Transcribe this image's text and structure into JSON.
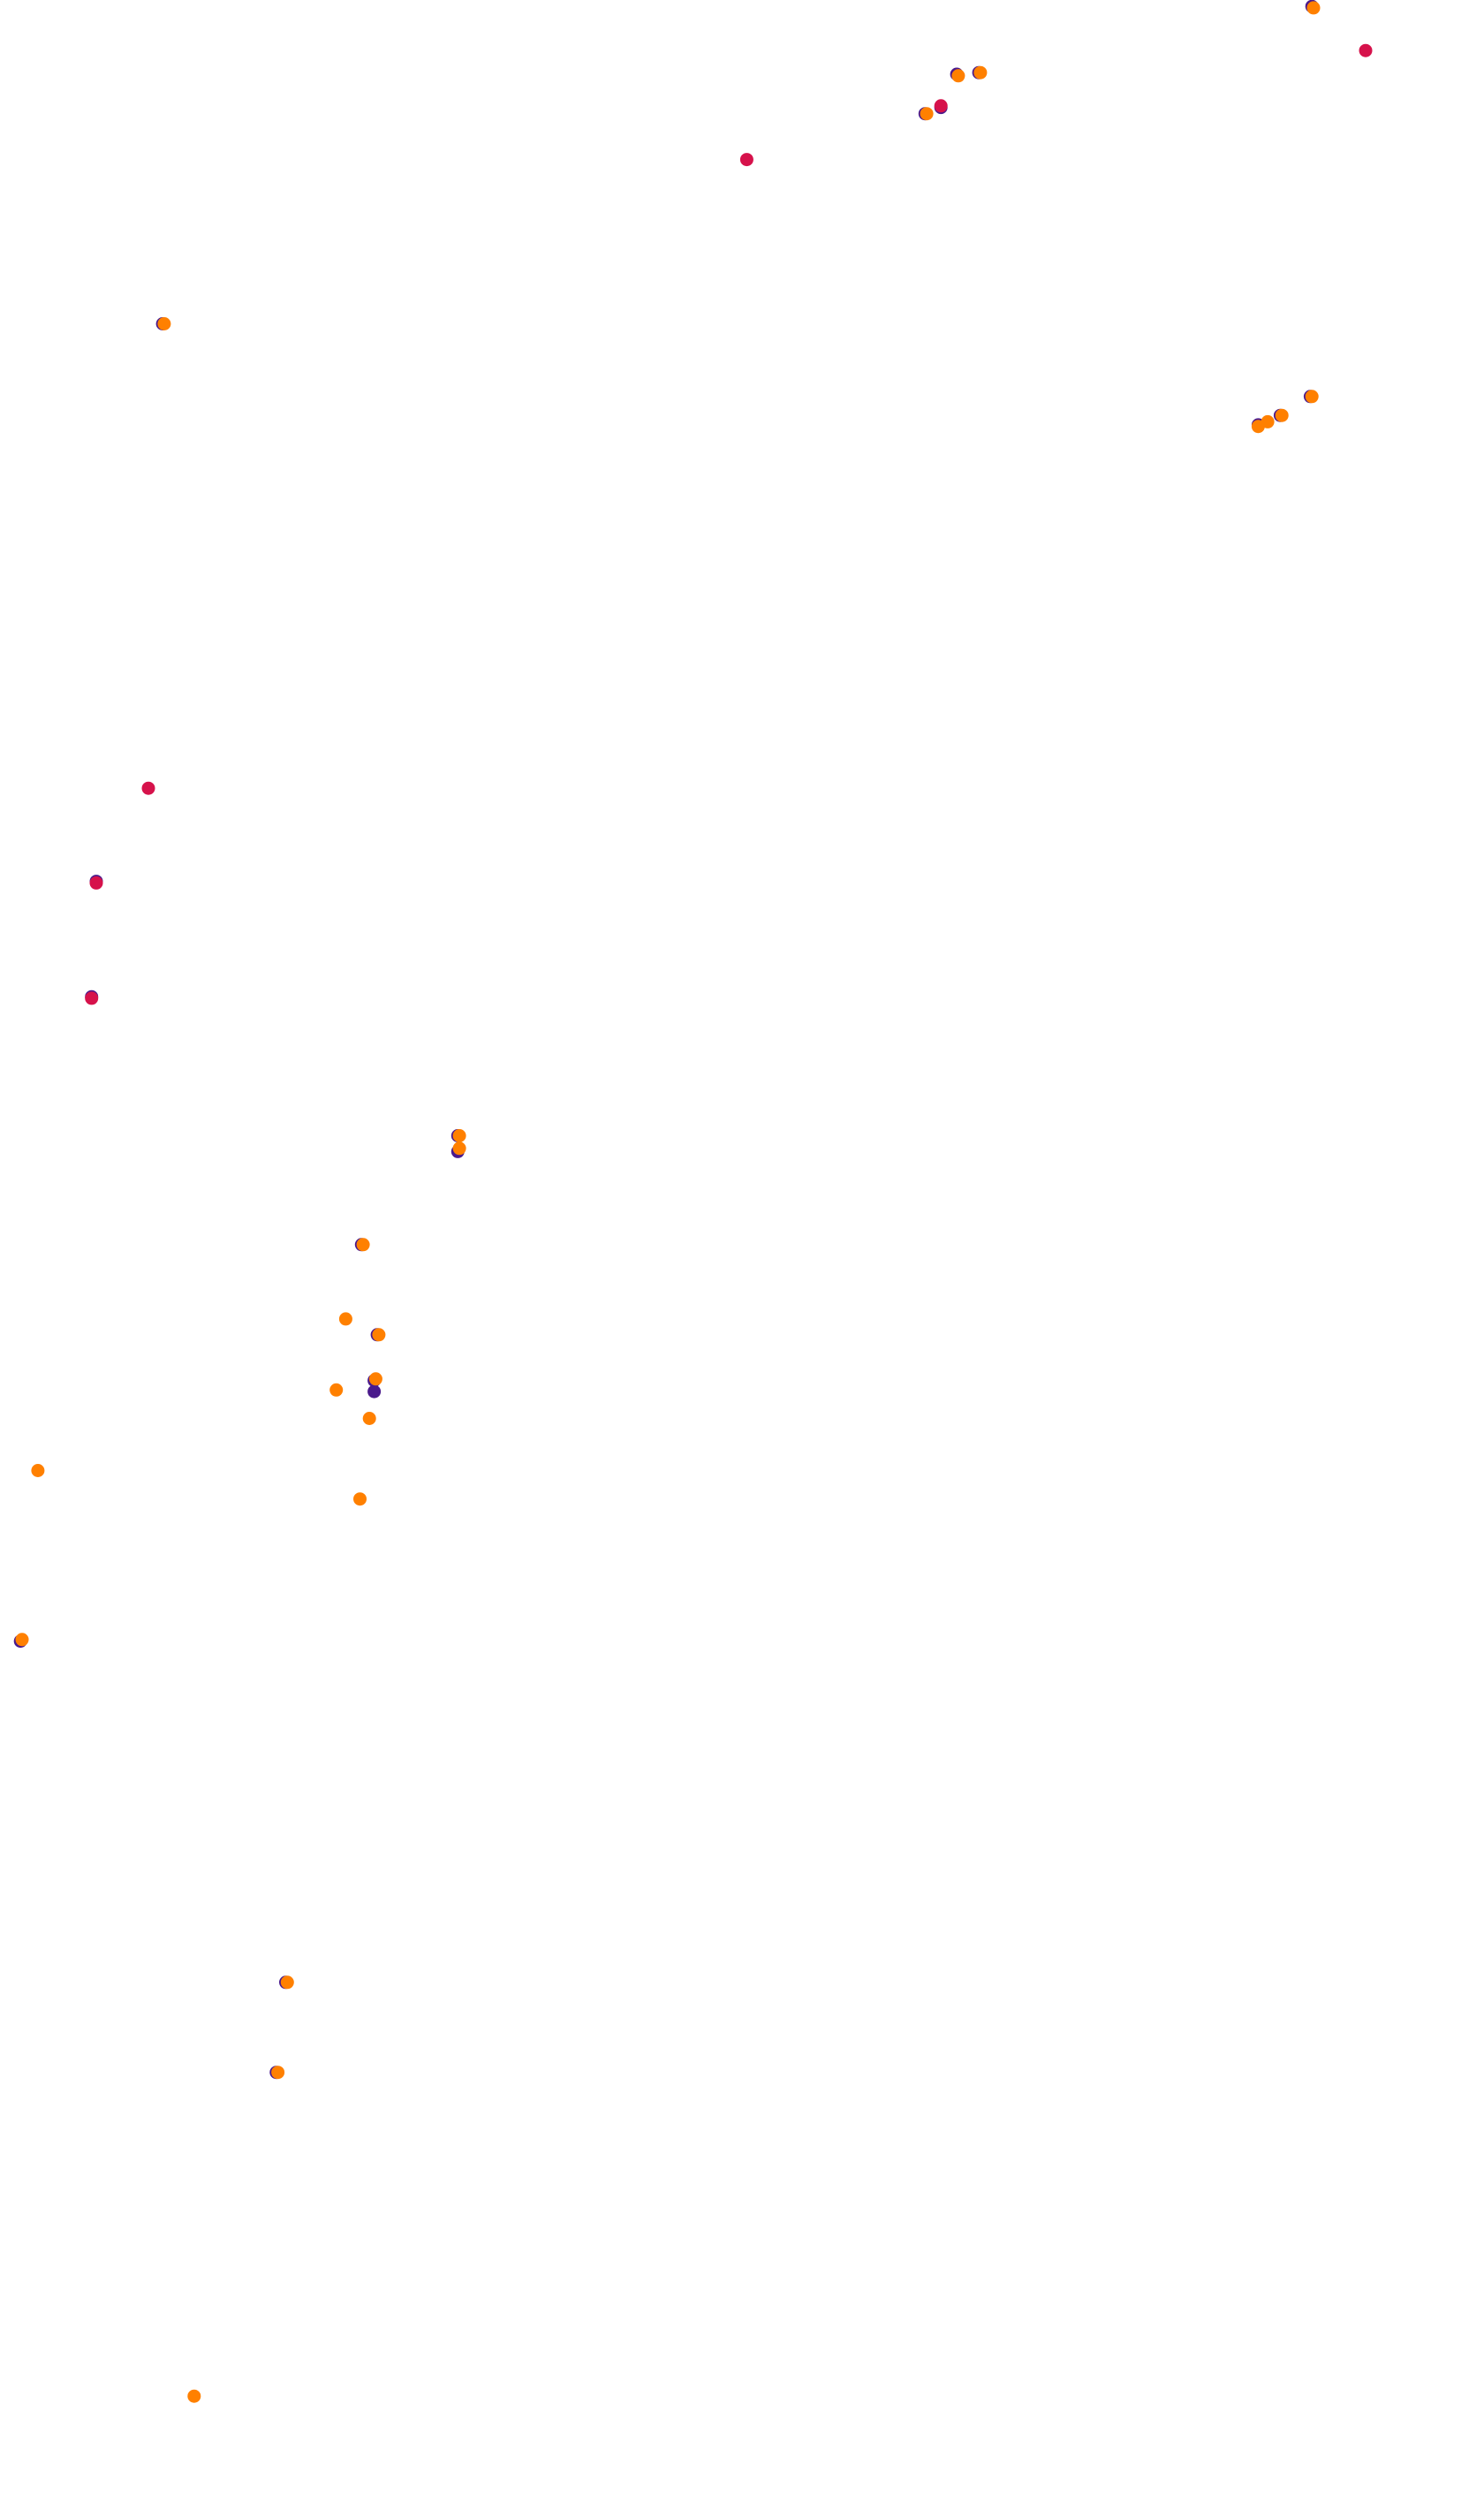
{
  "chart_data": {
    "type": "scatter",
    "title": "",
    "xlabel": "",
    "ylabel": "",
    "xlim": [
      0,
      940
    ],
    "ylim": [
      0,
      1584
    ],
    "y_axis_direction": "down",
    "grid": false,
    "legend": "none",
    "axes_visible": false,
    "series": [
      {
        "color": "#4a1a8c",
        "points": [
          {
            "x": 831,
            "y": 4
          },
          {
            "x": 606,
            "y": 47
          },
          {
            "x": 586,
            "y": 72
          },
          {
            "x": 620,
            "y": 46
          },
          {
            "x": 596,
            "y": 68
          },
          {
            "x": 103,
            "y": 205
          },
          {
            "x": 830,
            "y": 251
          },
          {
            "x": 811,
            "y": 263
          },
          {
            "x": 797,
            "y": 269
          },
          {
            "x": 61,
            "y": 558
          },
          {
            "x": 58,
            "y": 631
          },
          {
            "x": 290,
            "y": 729
          },
          {
            "x": 290,
            "y": 719
          },
          {
            "x": 229,
            "y": 788
          },
          {
            "x": 239,
            "y": 845
          },
          {
            "x": 237,
            "y": 874
          },
          {
            "x": 237,
            "y": 881
          },
          {
            "x": 13,
            "y": 1039
          },
          {
            "x": 181,
            "y": 1255
          },
          {
            "x": 175,
            "y": 1312
          }
        ]
      },
      {
        "color": "#d6124b",
        "points": [
          {
            "x": 865,
            "y": 32
          },
          {
            "x": 473,
            "y": 101
          },
          {
            "x": 596,
            "y": 67
          },
          {
            "x": 94,
            "y": 499
          },
          {
            "x": 61,
            "y": 559
          },
          {
            "x": 58,
            "y": 632
          }
        ]
      },
      {
        "color": "#ff8000",
        "points": [
          {
            "x": 832,
            "y": 5
          },
          {
            "x": 607,
            "y": 48
          },
          {
            "x": 621,
            "y": 46
          },
          {
            "x": 587,
            "y": 72
          },
          {
            "x": 104,
            "y": 205
          },
          {
            "x": 831,
            "y": 251
          },
          {
            "x": 812,
            "y": 263
          },
          {
            "x": 803,
            "y": 267
          },
          {
            "x": 797,
            "y": 270
          },
          {
            "x": 291,
            "y": 719
          },
          {
            "x": 291,
            "y": 727
          },
          {
            "x": 230,
            "y": 788
          },
          {
            "x": 219,
            "y": 835
          },
          {
            "x": 240,
            "y": 845
          },
          {
            "x": 213,
            "y": 880
          },
          {
            "x": 238,
            "y": 873
          },
          {
            "x": 234,
            "y": 898
          },
          {
            "x": 24,
            "y": 931
          },
          {
            "x": 228,
            "y": 949
          },
          {
            "x": 14,
            "y": 1038
          },
          {
            "x": 182,
            "y": 1255
          },
          {
            "x": 176,
            "y": 1312
          },
          {
            "x": 123,
            "y": 1517
          }
        ]
      }
    ]
  }
}
